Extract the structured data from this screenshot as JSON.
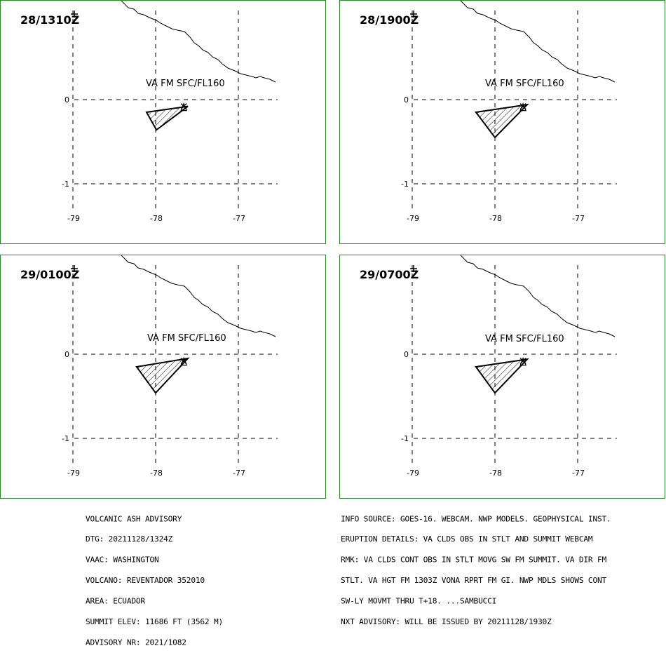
{
  "panels": [
    {
      "time": "28/1310Z",
      "label": "VA FM SFC/FL160",
      "polygon": [
        [
          -78.11,
          -0.15
        ],
        [
          -77.61,
          -0.08
        ],
        [
          -77.99,
          -0.36
        ]
      ]
    },
    {
      "time": "28/1900Z",
      "label": "VA FM SFC/FL160",
      "polygon": [
        [
          -78.23,
          -0.15
        ],
        [
          -77.61,
          -0.06
        ],
        [
          -78.0,
          -0.45
        ]
      ]
    },
    {
      "time": "29/0100Z",
      "label": "VA FM SFC/FL160",
      "polygon": [
        [
          -78.23,
          -0.15
        ],
        [
          -77.61,
          -0.05
        ],
        [
          -78.0,
          -0.46
        ]
      ]
    },
    {
      "time": "29/0700Z",
      "label": "VA FM SFC/FL160",
      "polygon": [
        [
          -78.23,
          -0.15
        ],
        [
          -77.61,
          -0.06
        ],
        [
          -78.0,
          -0.46
        ]
      ]
    }
  ],
  "axes": {
    "lon_ticks": [
      "-79",
      "-78",
      "-77"
    ],
    "lat_ticks": [
      "0",
      "-1"
    ]
  },
  "advisory": {
    "left_lines": [
      "VOLCANIC ASH ADVISORY",
      "DTG: 20211128/1324Z",
      "VAAC: WASHINGTON",
      "VOLCANO: REVENTADOR 352010",
      "AREA: ECUADOR",
      "SUMMIT ELEV: 11686 FT (3562 M)",
      "ADVISORY NR: 2021/1082"
    ],
    "right_lines": [
      "INFO SOURCE: GOES-16. WEBCAM. NWP MODELS. GEOPHYSICAL INST.",
      "ERUPTION DETAILS: VA CLDS OBS IN STLT AND SUMMIT WEBCAM",
      "RMK: VA CLDS CONT OBS IN STLT MOVG SW FM SUMMIT. VA DIR FM",
      "STLT. VA HGT FM 1303Z VONA RPRT FM GI. NWP MDLS SHOWS CONT",
      "SW-LY MOVMT THRU T+18. ...SAMBUCCI",
      "NXT ADVISORY: WILL BE ISSUED BY 20211128/1930Z"
    ]
  },
  "colors": {
    "panel_border": "#2a8a2a",
    "lines": "#000000"
  }
}
